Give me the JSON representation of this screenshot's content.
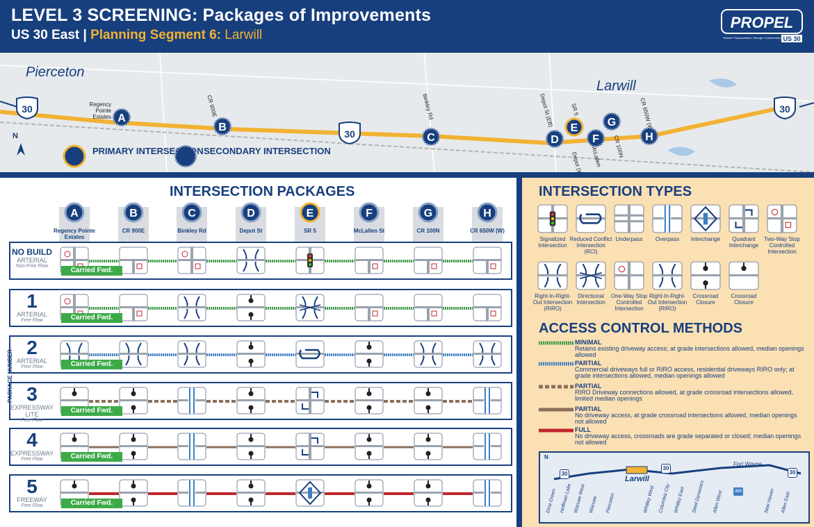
{
  "header": {
    "title": "LEVEL 3 SCREENING: Packages of Improvements",
    "route": "US 30 East | ",
    "segment_label": "Planning Segment 6: ",
    "segment_name": "Larwill",
    "logo_text": "PROPEL",
    "logo_tagline": "Smarter Transportation. Stronger Communities.",
    "logo_route": "US 30"
  },
  "map": {
    "towns": [
      "Pierceton",
      "Larwill"
    ],
    "route_shield": "30",
    "north": "N",
    "labels": {
      "regency": "Regency Pointe Estates",
      "cr900e": "CR 900E",
      "binkley": "Binkley Rd",
      "depot_eb": "Depot St (EB)",
      "sr5": "SR 5",
      "mclallen": "McLallen",
      "depot_wb": "Depot (WB)",
      "cr100n": "CR 100N",
      "cr650w": "CR 650W (W)"
    },
    "legend": {
      "primary": "PRIMARY INTERSECTION",
      "secondary": "SECONDARY INTERSECTION"
    },
    "points": [
      "A",
      "B",
      "C",
      "D",
      "E",
      "F",
      "G",
      "H"
    ]
  },
  "packages": {
    "title": "INTERSECTION PACKAGES",
    "side_label": "PACKAGE NUMBER",
    "columns": [
      {
        "letter": "A",
        "name": "Regency Pointe Estates"
      },
      {
        "letter": "B",
        "name": "CR 900E"
      },
      {
        "letter": "C",
        "name": "Binkley Rd"
      },
      {
        "letter": "D",
        "name": "Depot St"
      },
      {
        "letter": "E",
        "name": "SR 5"
      },
      {
        "letter": "F",
        "name": "McLallen St"
      },
      {
        "letter": "G",
        "name": "CR 100N"
      },
      {
        "letter": "H",
        "name": "CR 650W (W)"
      }
    ],
    "carried": "Carried Fwd.",
    "rows": [
      {
        "num": "NO BUILD",
        "type": "ARTERIAL",
        "flow": "Non-Free Flow"
      },
      {
        "num": "1",
        "type": "ARTERIAL",
        "flow": "Free Flow"
      },
      {
        "num": "2",
        "type": "ARTERIAL",
        "flow": "Free Flow"
      },
      {
        "num": "3",
        "type": "EXPRESSWAY LITE",
        "flow": "Free Flow"
      },
      {
        "num": "4",
        "type": "EXPRESSWAY",
        "flow": "Free Flow"
      },
      {
        "num": "5",
        "type": "FREEWAY",
        "flow": "Free Flow"
      }
    ]
  },
  "types": {
    "title": "INTERSECTION TYPES",
    "row1": [
      "Signalized Intersection",
      "Reduced Conflict Intersection (RCI)",
      "Underpass",
      "Overpass",
      "Interchange",
      "Quadrant Interchange",
      "Two-Way Stop Controlled Intersection"
    ],
    "row2": [
      "Right-In-Right-Out Intersection (RIRO)",
      "Directional Intersection",
      "One-Way Stop Controlled Intersection",
      "Right-In-Right-Out Intersection (RIRO)",
      "Crossroad Closure",
      "Crossroad Closure"
    ]
  },
  "access": {
    "title": "ACCESS CONTROL METHODS",
    "items": [
      {
        "head": "MINIMAL",
        "text": "Retains existing driveway access; at grade intersections allowed, median openings allowed",
        "color": "#3c9a47"
      },
      {
        "head": "PARTIAL",
        "text": "Commercial driveways full or RIRO access, residential driveways RIRO only; at grade intersections allowed, median openings allowed",
        "color": "#3d7fc4"
      },
      {
        "head": "PARTIAL",
        "text": "RIRO Driveway connections allowed, at grade crossroad intersections allowed, limited median openings",
        "color": "#8a6f5c"
      },
      {
        "head": "PARTIAL",
        "text": "No driveway access, at grade crossroad intersections allowed, median openings not allowed",
        "color": "#8a6f5c"
      },
      {
        "head": "FULL",
        "text": "No driveway access, crossroads are grade separated or closed; median openings not allowed",
        "color": "#c0272d"
      }
    ]
  },
  "inset": {
    "north": "N",
    "highlight": "Larwill",
    "city": "Fort Wayne",
    "shield_30": "30",
    "shield_469": "469",
    "places": [
      "Etna Green",
      "Hoffman Lake",
      "Warsaw West",
      "Warsaw",
      "Pierceton",
      "Whitley West",
      "Columbia City",
      "Whitley East",
      "Steel Dynamics",
      "Allen West",
      "New Haven",
      "Allen East"
    ]
  }
}
